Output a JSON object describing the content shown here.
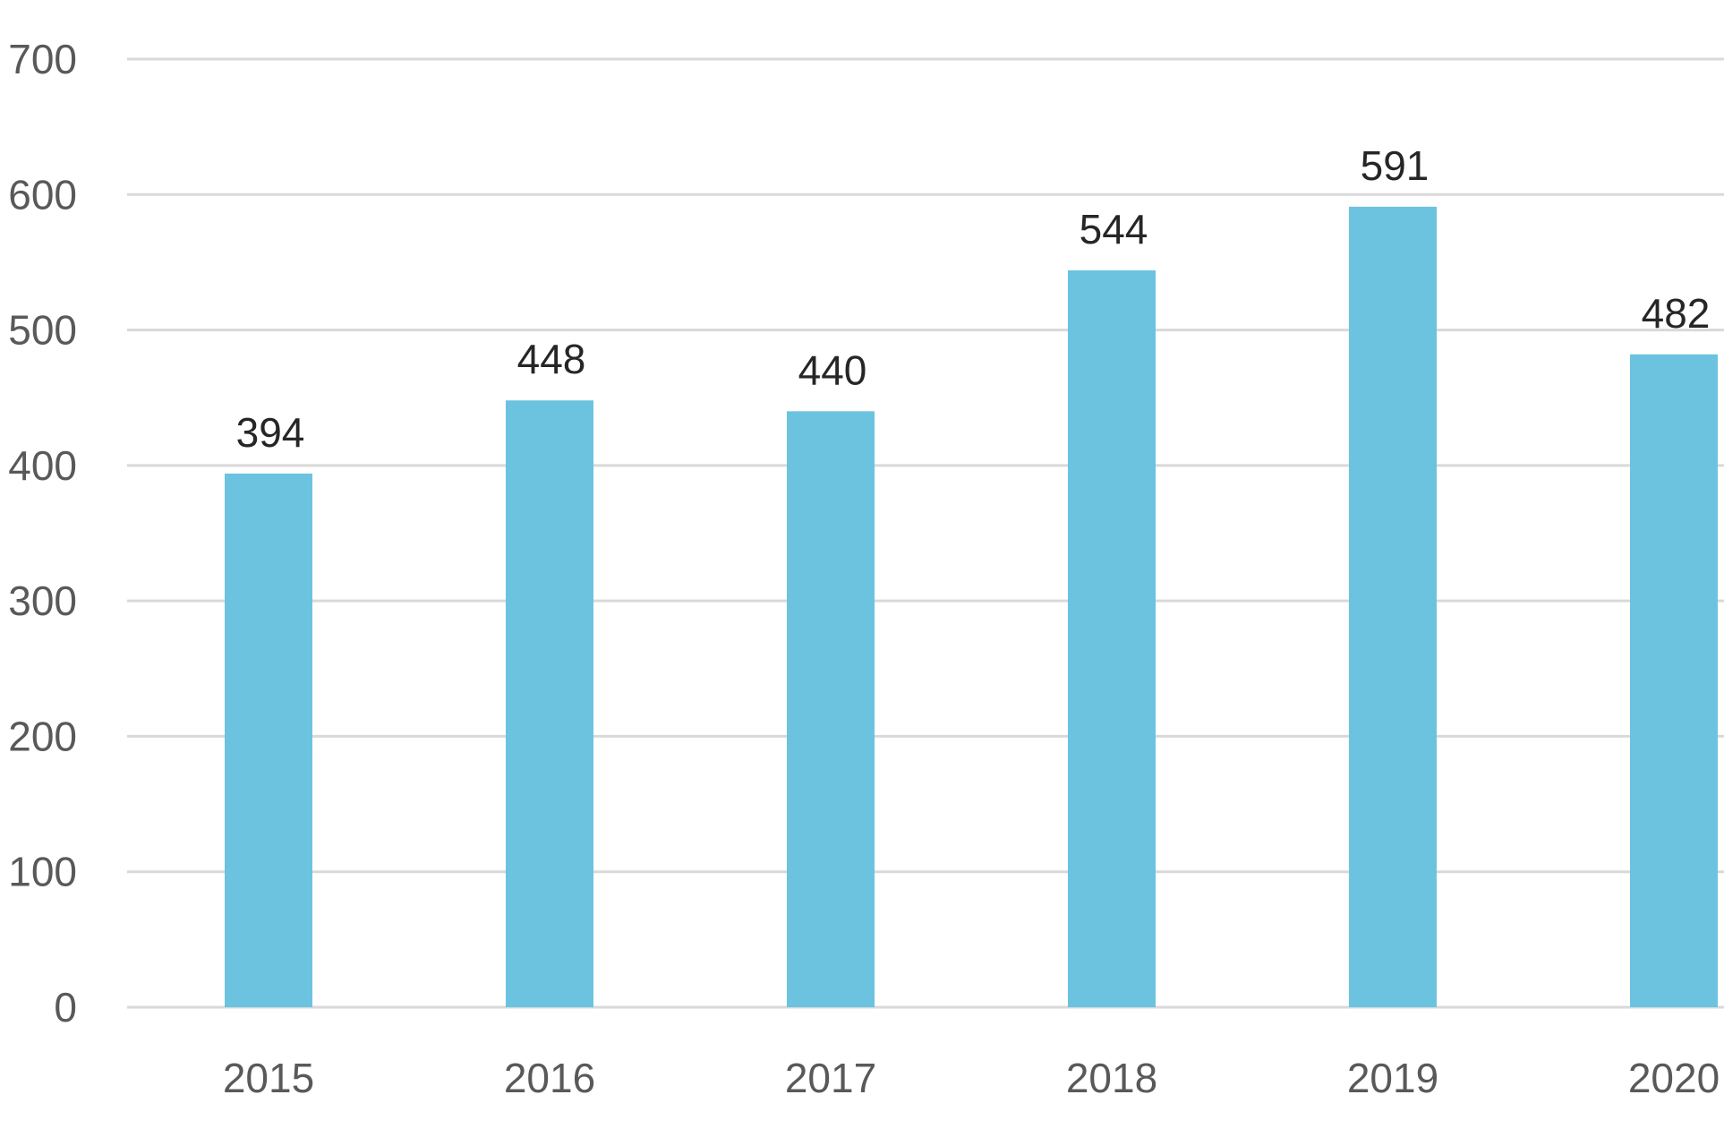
{
  "chart_data": {
    "type": "bar",
    "categories": [
      "2015",
      "2016",
      "2017",
      "2018",
      "2019",
      "2020"
    ],
    "series": [
      {
        "values": [
          394,
          448,
          440,
          544,
          591,
          482
        ]
      }
    ],
    "title": "",
    "xlabel": "",
    "ylabel": "",
    "ylim": [
      0,
      700
    ],
    "yticks": [
      "0",
      "100",
      "200",
      "300",
      "400",
      "500",
      "600",
      "700"
    ],
    "grid": true,
    "legend": "none",
    "colors": {
      "bar": "#6bc3e0",
      "grid": "#d9d9d9",
      "text": "#595959",
      "label": "#262626"
    }
  }
}
